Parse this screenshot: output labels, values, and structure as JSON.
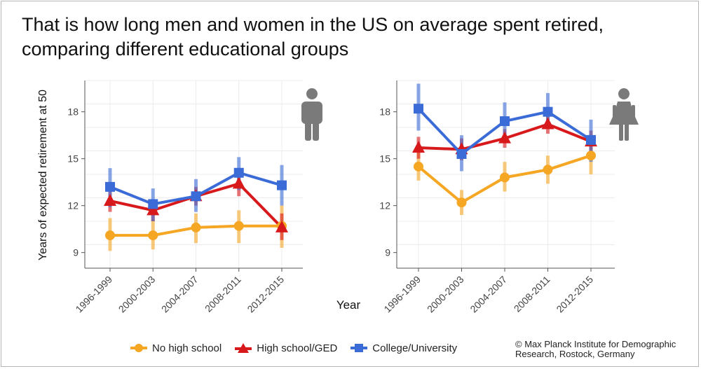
{
  "title_line1": "That is how long men and women in the US on average spent retired,",
  "title_line2": "comparing different educational groups",
  "credit_line1": "© Max Planck Institute for Demographic",
  "credit_line2": "Research, Rostock, Germany",
  "colors": {
    "no_high_school": "#F5A623",
    "high_school": "#D7191C",
    "college": "#3B6BD6"
  },
  "icons": {
    "men": "male-person-icon",
    "women": "female-person-icon"
  },
  "chart_data": [
    {
      "type": "line",
      "panel": "men",
      "x": [
        "1996-1999",
        "2000-2003",
        "2004-2007",
        "2008-2011",
        "2012-2015"
      ],
      "xlabel": "Year",
      "ylabel": "Years of expected retirement at 50",
      "ylim": [
        8,
        20
      ],
      "yticks": [
        9,
        12,
        15,
        18
      ],
      "grid": true,
      "series": [
        {
          "name": "No high school",
          "key": "no_high_school",
          "marker": "circle",
          "values": [
            10.1,
            10.1,
            10.6,
            10.7,
            10.7
          ],
          "ci_low": [
            9.1,
            9.2,
            9.6,
            9.6,
            9.3
          ],
          "ci_high": [
            11.2,
            11.1,
            11.5,
            11.7,
            12.0
          ]
        },
        {
          "name": "High school/GED",
          "key": "high_school",
          "marker": "triangle",
          "values": [
            12.3,
            11.7,
            12.6,
            13.4,
            10.6
          ],
          "ci_low": [
            11.6,
            11.0,
            12.0,
            12.6,
            9.8
          ],
          "ci_high": [
            13.0,
            12.3,
            13.2,
            14.1,
            11.5
          ]
        },
        {
          "name": "College/University",
          "key": "college",
          "marker": "square",
          "values": [
            13.2,
            12.1,
            12.6,
            14.1,
            13.3
          ],
          "ci_low": [
            11.9,
            11.0,
            11.6,
            13.0,
            12.0
          ],
          "ci_high": [
            14.4,
            13.1,
            13.7,
            15.1,
            14.6
          ]
        }
      ]
    },
    {
      "type": "line",
      "panel": "women",
      "x": [
        "1996-1999",
        "2000-2003",
        "2004-2007",
        "2008-2011",
        "2012-2015"
      ],
      "xlabel": "Year",
      "ylim": [
        8,
        20
      ],
      "yticks": [
        9,
        12,
        15,
        18
      ],
      "grid": true,
      "series": [
        {
          "name": "No high school",
          "key": "no_high_school",
          "marker": "circle",
          "values": [
            14.5,
            12.2,
            13.8,
            14.3,
            15.2
          ],
          "ci_low": [
            13.6,
            11.4,
            12.9,
            13.4,
            14.0
          ],
          "ci_high": [
            15.4,
            13.0,
            14.8,
            15.2,
            16.4
          ]
        },
        {
          "name": "High school/GED",
          "key": "high_school",
          "marker": "triangle",
          "values": [
            15.7,
            15.6,
            16.3,
            17.2,
            16.1
          ],
          "ci_low": [
            15.0,
            14.9,
            15.7,
            16.6,
            15.4
          ],
          "ci_high": [
            16.4,
            16.3,
            16.9,
            17.8,
            16.8
          ]
        },
        {
          "name": "College/University",
          "key": "college",
          "marker": "square",
          "values": [
            18.2,
            15.3,
            17.4,
            18.0,
            16.2
          ],
          "ci_low": [
            16.8,
            14.2,
            16.2,
            16.9,
            14.8
          ],
          "ci_high": [
            19.8,
            16.5,
            18.6,
            19.2,
            17.5
          ]
        }
      ]
    }
  ]
}
